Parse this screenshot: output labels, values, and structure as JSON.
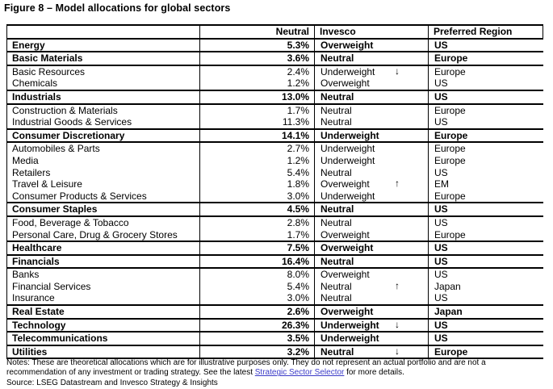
{
  "title": "Figure 8 – Model allocations for global sectors",
  "colors": {
    "text": "#000000",
    "border": "#000000",
    "link": "#3c3cc8"
  },
  "arrow_glyphs": {
    "up": "↑",
    "down": "↓"
  },
  "table": {
    "headers": {
      "sector": "",
      "neutral": "Neutral",
      "invesco": "Invesco",
      "region": "Preferred Region"
    },
    "rows": [
      {
        "sector": "Energy",
        "neutral": "5.3%",
        "invesco": "Overweight",
        "arrow": "",
        "region": "US",
        "bold": true
      },
      {
        "sector": "Basic Materials",
        "neutral": "3.6%",
        "invesco": "Neutral",
        "arrow": "",
        "region": "Europe",
        "bold": true
      },
      {
        "sector": "Basic Resources",
        "neutral": "2.4%",
        "invesco": "Underweight",
        "arrow": "down",
        "region": "Europe",
        "bold": false
      },
      {
        "sector": "Chemicals",
        "neutral": "1.2%",
        "invesco": "Overweight",
        "arrow": "",
        "region": "US",
        "bold": false
      },
      {
        "sector": "Industrials",
        "neutral": "13.0%",
        "invesco": "Neutral",
        "arrow": "",
        "region": "US",
        "bold": true
      },
      {
        "sector": "Construction & Materials",
        "neutral": "1.7%",
        "invesco": "Neutral",
        "arrow": "",
        "region": "Europe",
        "bold": false
      },
      {
        "sector": "Industrial Goods & Services",
        "neutral": "11.3%",
        "invesco": "Neutral",
        "arrow": "",
        "region": "US",
        "bold": false
      },
      {
        "sector": "Consumer Discretionary",
        "neutral": "14.1%",
        "invesco": "Underweight",
        "arrow": "",
        "region": "Europe",
        "bold": true
      },
      {
        "sector": "Automobiles & Parts",
        "neutral": "2.7%",
        "invesco": "Underweight",
        "arrow": "",
        "region": "Europe",
        "bold": false
      },
      {
        "sector": "Media",
        "neutral": "1.2%",
        "invesco": "Underweight",
        "arrow": "",
        "region": "Europe",
        "bold": false
      },
      {
        "sector": "Retailers",
        "neutral": "5.4%",
        "invesco": "Neutral",
        "arrow": "",
        "region": "US",
        "bold": false
      },
      {
        "sector": "Travel & Leisure",
        "neutral": "1.8%",
        "invesco": "Overweight",
        "arrow": "up",
        "region": "EM",
        "bold": false
      },
      {
        "sector": "Consumer Products & Services",
        "neutral": "3.0%",
        "invesco": "Underweight",
        "arrow": "",
        "region": "Europe",
        "bold": false
      },
      {
        "sector": "Consumer Staples",
        "neutral": "4.5%",
        "invesco": "Neutral",
        "arrow": "",
        "region": "US",
        "bold": true
      },
      {
        "sector": "Food, Beverage & Tobacco",
        "neutral": "2.8%",
        "invesco": "Neutral",
        "arrow": "",
        "region": "US",
        "bold": false
      },
      {
        "sector": "Personal Care, Drug & Grocery Stores",
        "neutral": "1.7%",
        "invesco": "Overweight",
        "arrow": "",
        "region": "Europe",
        "bold": false
      },
      {
        "sector": "Healthcare",
        "neutral": "7.5%",
        "invesco": "Overweight",
        "arrow": "",
        "region": "US",
        "bold": true
      },
      {
        "sector": "Financials",
        "neutral": "16.4%",
        "invesco": "Neutral",
        "arrow": "",
        "region": "US",
        "bold": true
      },
      {
        "sector": "Banks",
        "neutral": "8.0%",
        "invesco": "Overweight",
        "arrow": "",
        "region": "US",
        "bold": false
      },
      {
        "sector": "Financial Services",
        "neutral": "5.4%",
        "invesco": "Neutral",
        "arrow": "up",
        "region": "Japan",
        "bold": false
      },
      {
        "sector": "Insurance",
        "neutral": "3.0%",
        "invesco": "Neutral",
        "arrow": "",
        "region": "US",
        "bold": false
      },
      {
        "sector": "Real Estate",
        "neutral": "2.6%",
        "invesco": "Overweight",
        "arrow": "",
        "region": "Japan",
        "bold": true
      },
      {
        "sector": "Technology",
        "neutral": "26.3%",
        "invesco": "Underweight",
        "arrow": "down",
        "region": "US",
        "bold": true
      },
      {
        "sector": "Telecommunications",
        "neutral": "3.5%",
        "invesco": "Underweight",
        "arrow": "",
        "region": "US",
        "bold": true
      },
      {
        "sector": "Utilities",
        "neutral": "3.2%",
        "invesco": "Neutral",
        "arrow": "down",
        "region": "Europe",
        "bold": true
      }
    ]
  },
  "notes": {
    "part1": "Notes: These are theoretical allocations which are for illustrative purposes only. They do not represent an actual portfolio and are not a recommendation of any investment or trading strategy. See the latest ",
    "link": "Strategic Sector Selector",
    "part2": " for more details.",
    "source": "Source: LSEG Datastream and Invesco Strategy & Insights"
  }
}
